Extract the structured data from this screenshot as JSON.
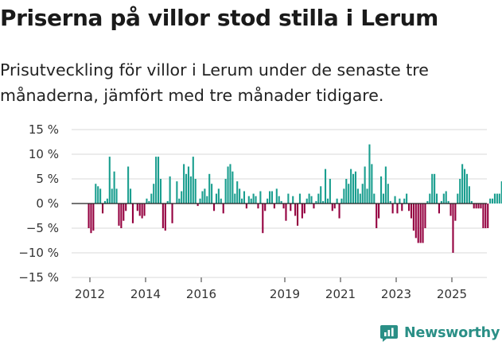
{
  "header": {
    "title": "Priserna på villor stod stilla i Lerum",
    "subtitle": "Prisutveckling för villor i Lerum under de senaste tre månaderna, jämfört med tre månader tidigare."
  },
  "brand": {
    "name": "Newsworthy",
    "icon": "newsworthy-logo-icon",
    "color": "#2a8f86"
  },
  "colors": {
    "positive": "#1a9e8f",
    "negative": "#94003f",
    "zero_line": "#222222",
    "grid": "#d9d9d9"
  },
  "chart_data": {
    "type": "bar",
    "title": "Priserna på villor stod stilla i Lerum",
    "ylabel": "",
    "xlabel": "",
    "ylim": [
      -15,
      15
    ],
    "y_ticks": [
      15,
      10,
      5,
      0,
      -5,
      -10,
      -15
    ],
    "y_tick_labels": [
      "15 %",
      "10 %",
      "5 %",
      "0 %",
      "−5 %",
      "−10 %",
      "−15 %"
    ],
    "x_ticks": [
      2012,
      2014,
      2016,
      2019,
      2021,
      2023,
      2025
    ],
    "x_tick_labels": [
      "2012",
      "2014",
      "2016",
      "2019",
      "2021",
      "2023",
      "2025"
    ],
    "grid": true,
    "start": "2011-12",
    "frequency": "monthly",
    "annotation": {
      "text": "0 %",
      "value": 0
    },
    "values": [
      -5,
      -6,
      -5.5,
      4,
      3.5,
      3,
      -2,
      0.5,
      1,
      9.5,
      3,
      6.5,
      3,
      -4.5,
      -5,
      -3.5,
      -1.5,
      7.5,
      3,
      -4,
      0,
      -1.5,
      -2.5,
      -3,
      -2.5,
      1,
      0.5,
      2,
      4,
      9.5,
      9.5,
      5,
      -5,
      -5.5,
      0.5,
      5.5,
      -4,
      0,
      4.5,
      1,
      2.5,
      8,
      6,
      7.5,
      5.5,
      9.5,
      5,
      -0.5,
      1,
      2.5,
      3,
      1.5,
      6,
      4,
      -1.5,
      2,
      3,
      1,
      -2,
      5,
      7.5,
      8,
      6.5,
      2,
      4.5,
      3,
      1,
      2.5,
      -1,
      1.5,
      1,
      2,
      1.5,
      -1,
      2.5,
      -6,
      -1.5,
      1,
      2.5,
      2.5,
      -1,
      3,
      1.5,
      0.5,
      -1,
      -3.5,
      2,
      -1.5,
      1.5,
      -2.5,
      -4.5,
      2,
      -3,
      -2,
      1,
      2,
      1.5,
      -1,
      0.5,
      2,
      3.5,
      0.5,
      7,
      1,
      5,
      -1.5,
      -1,
      1,
      -3,
      1,
      3,
      5,
      4,
      7,
      6,
      6.5,
      3,
      2,
      4,
      7.5,
      3,
      12,
      8,
      2,
      -5,
      -3,
      5.5,
      2,
      7.5,
      4,
      0.5,
      -2,
      1.5,
      -2,
      1,
      -1.5,
      1,
      2,
      -1.5,
      -3,
      -5.5,
      -7,
      -8,
      -8,
      -8,
      -5,
      0.5,
      2,
      6,
      6,
      2,
      -2,
      0.5,
      2,
      2.5,
      0.5,
      -2.5,
      -10,
      -3.5,
      2,
      5,
      8,
      7,
      6,
      3.5,
      0.5,
      -1,
      -1,
      -1,
      -1,
      -5,
      -5,
      -5,
      1,
      1,
      2,
      2,
      2,
      4.5,
      0
    ]
  }
}
